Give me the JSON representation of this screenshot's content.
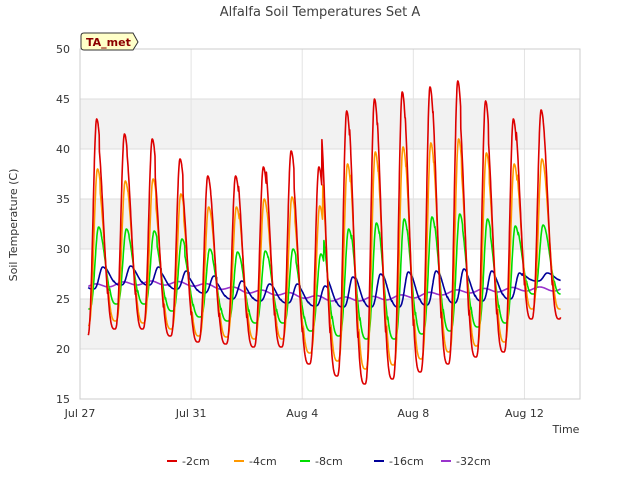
{
  "chart_data": {
    "type": "line",
    "title": "Alfalfa Soil Temperatures Set A",
    "xlabel": "Time",
    "ylabel": "Soil Temperature (C)",
    "badge": "TA_met",
    "x_ticks": [
      "Jul 27",
      "Jul 31",
      "Aug 4",
      "Aug 8",
      "Aug 12"
    ],
    "x_tick_days": [
      0,
      4,
      8,
      12,
      16
    ],
    "xlim": [
      0,
      18
    ],
    "ylim": [
      15,
      50
    ],
    "y_ticks": [
      15,
      20,
      25,
      30,
      35,
      40,
      45,
      50
    ],
    "shaded_bands": [
      [
        20,
        25
      ],
      [
        30,
        35
      ],
      [
        40,
        45
      ]
    ],
    "legend_position": "bottom-center",
    "series": [
      {
        "name": "-2cm",
        "color": "#dd0000",
        "peaks": [
          43.0,
          41.5,
          41.0,
          39.0,
          37.3,
          37.3,
          38.2,
          39.8,
          38.2,
          43.8,
          45.0,
          45.7,
          46.2,
          46.8,
          44.8,
          43.0,
          43.9
        ],
        "troughs": [
          21.2,
          22.0,
          22.0,
          21.3,
          20.7,
          20.5,
          20.2,
          20.2,
          18.5,
          17.3,
          16.5,
          17.0,
          17.7,
          18.5,
          19.2,
          19.7,
          23.0
        ]
      },
      {
        "name": "-4cm",
        "color": "#ff9900",
        "peaks": [
          38.0,
          36.8,
          37.0,
          35.5,
          34.2,
          34.2,
          35.0,
          35.2,
          34.3,
          38.5,
          39.7,
          40.2,
          40.6,
          41.0,
          39.6,
          38.5,
          39.0
        ],
        "troughs": [
          22.3,
          22.8,
          22.6,
          22.0,
          21.3,
          21.2,
          21.0,
          21.0,
          19.6,
          18.8,
          18.0,
          18.4,
          19.0,
          19.7,
          20.3,
          20.7,
          24.0
        ]
      },
      {
        "name": "-8cm",
        "color": "#00dd00",
        "peaks": [
          32.2,
          32.0,
          31.8,
          31.0,
          30.0,
          29.7,
          29.8,
          30.0,
          29.5,
          32.0,
          32.6,
          33.0,
          33.2,
          33.5,
          33.0,
          32.3,
          32.4
        ],
        "troughs": [
          24.0,
          24.5,
          24.5,
          23.8,
          23.2,
          22.8,
          22.6,
          22.6,
          21.8,
          21.3,
          21.0,
          21.0,
          21.5,
          21.8,
          22.2,
          22.6,
          25.5
        ]
      },
      {
        "name": "-16cm",
        "color": "#000099",
        "peaks": [
          28.2,
          28.3,
          28.2,
          27.8,
          27.3,
          26.8,
          26.5,
          26.5,
          26.3,
          27.2,
          27.5,
          27.7,
          27.8,
          28.0,
          27.8,
          27.6,
          27.6
        ],
        "troughs": [
          26.0,
          26.4,
          26.4,
          26.0,
          25.6,
          25.0,
          24.8,
          24.6,
          24.3,
          24.2,
          24.2,
          24.2,
          24.4,
          24.6,
          24.8,
          25.0,
          26.8
        ]
      },
      {
        "name": "-32cm",
        "color": "#9933cc",
        "mean": [
          26.2,
          26.4,
          26.6,
          26.6,
          26.5,
          26.2,
          25.8,
          25.6,
          25.3,
          25.0,
          25.0,
          25.1,
          25.3,
          25.6,
          25.8,
          25.9,
          26.0
        ],
        "amplitude": 0.2
      }
    ]
  }
}
